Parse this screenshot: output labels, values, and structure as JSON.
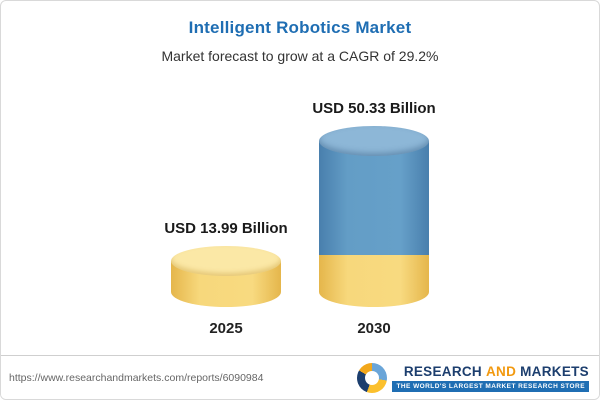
{
  "header": {
    "title": "Intelligent Robotics Market",
    "subtitle": "Market forecast to grow at a CAGR of 29.2%"
  },
  "chart_data": {
    "type": "bar",
    "title": "Intelligent Robotics Market",
    "subtitle": "Market forecast to grow at a CAGR of 29.2%",
    "unit": "USD Billion",
    "cagr": "29.2%",
    "categories": [
      "2025",
      "2030"
    ],
    "values": [
      13.99,
      50.33
    ],
    "value_labels": [
      "USD 13.99 Billion",
      "USD 50.33 Billion"
    ],
    "legend": "none",
    "axes": "none",
    "colors": {
      "title": "#1f6eb3",
      "bar_2025": "#f6d77b",
      "bar_2030_top": "#5f9cc7",
      "bar_2030_base": "#f3cf6b"
    }
  },
  "footer": {
    "url": "https://www.researchandmarkets.com/reports/6090984",
    "logo": {
      "research": "RESEARCH",
      "and": "AND",
      "markets": "MARKETS",
      "tagline": "THE WORLD'S LARGEST MARKET RESEARCH STORE"
    }
  }
}
